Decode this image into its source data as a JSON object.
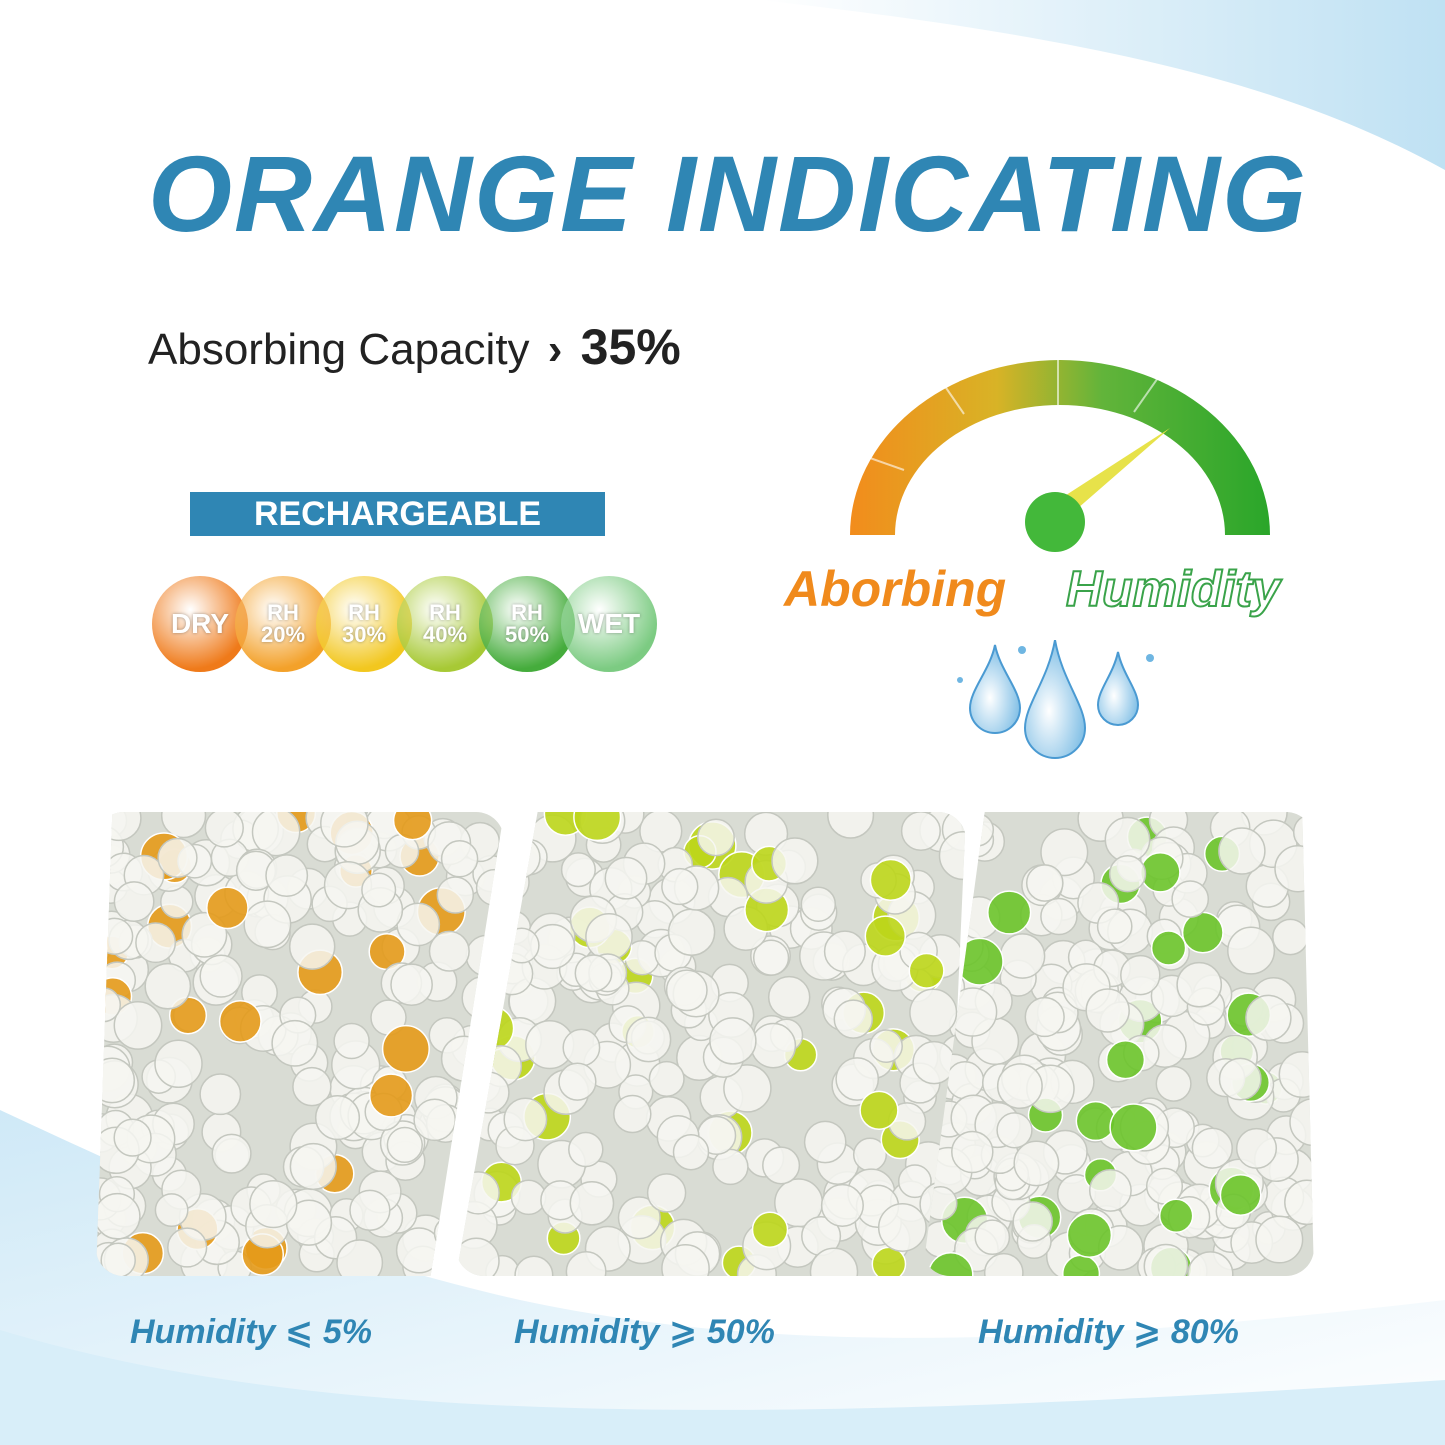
{
  "headline": "ORANGE INDICATING",
  "capacity": {
    "label": "Absorbing Capacity",
    "arrow": "›",
    "value": "35%"
  },
  "badge": "RECHARGEABLE",
  "indicator_dots": [
    {
      "line1": "DRY",
      "line2": "",
      "color": "#ef7a1a"
    },
    {
      "line1": "RH",
      "line2": "20%",
      "color": "#f3a12a"
    },
    {
      "line1": "RH",
      "line2": "30%",
      "color": "#f2c71f"
    },
    {
      "line1": "RH",
      "line2": "40%",
      "color": "#a7c935"
    },
    {
      "line1": "RH",
      "line2": "50%",
      "color": "#45ac3c"
    },
    {
      "line1": "WET",
      "line2": "",
      "color": "#7ccb82"
    }
  ],
  "gauge_caption": {
    "left": "Aborbing",
    "right": "Humidity"
  },
  "panels": [
    {
      "label": "Humidity ⩽ 5%",
      "tint": "#e49a1a"
    },
    {
      "label": "Humidity ⩾ 50%",
      "tint": "#bcd61a"
    },
    {
      "label": "Humidity ⩾ 80%",
      "tint": "#6cc42a"
    }
  ],
  "colors": {
    "accent": "#2f86b4",
    "orange": "#f08a1c",
    "green": "#3aa34a"
  }
}
